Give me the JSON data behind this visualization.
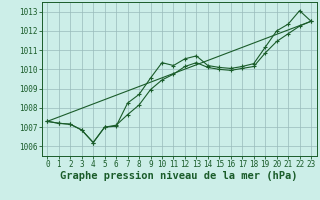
{
  "title": "Graphe pression niveau de la mer (hPa)",
  "bg_color": "#cceee8",
  "grid_color": "#99bbbb",
  "line_color": "#1a5c2a",
  "ylim": [
    1005.5,
    1013.5
  ],
  "xlim": [
    -0.5,
    23.5
  ],
  "yticks": [
    1006,
    1007,
    1008,
    1009,
    1010,
    1011,
    1012,
    1013
  ],
  "xticks": [
    0,
    1,
    2,
    3,
    4,
    5,
    6,
    7,
    8,
    9,
    10,
    11,
    12,
    13,
    14,
    15,
    16,
    17,
    18,
    19,
    20,
    21,
    22,
    23
  ],
  "line1_x": [
    0,
    1,
    2,
    3,
    4,
    5,
    6,
    7,
    8,
    9,
    10,
    11,
    12,
    13,
    14,
    15,
    16,
    17,
    18,
    19,
    20,
    21,
    22,
    23
  ],
  "line1_y": [
    1007.3,
    1007.2,
    1007.15,
    1006.85,
    1006.2,
    1007.0,
    1007.05,
    1008.25,
    1008.7,
    1009.55,
    1010.35,
    1010.2,
    1010.55,
    1010.7,
    1010.2,
    1010.1,
    1010.05,
    1010.15,
    1010.3,
    1011.15,
    1012.0,
    1012.35,
    1013.05,
    1012.5
  ],
  "line2_x": [
    0,
    1,
    2,
    3,
    4,
    5,
    6,
    7,
    8,
    9,
    10,
    11,
    12,
    13,
    14,
    15,
    16,
    17,
    18,
    19,
    20,
    21,
    22,
    23
  ],
  "line2_y": [
    1007.3,
    1007.2,
    1007.15,
    1006.85,
    1006.2,
    1007.0,
    1007.1,
    1007.65,
    1008.15,
    1008.95,
    1009.45,
    1009.75,
    1010.15,
    1010.35,
    1010.1,
    1010.0,
    1009.95,
    1010.05,
    1010.15,
    1010.85,
    1011.45,
    1011.85,
    1012.25,
    1012.5
  ],
  "line3_x": [
    0,
    23
  ],
  "line3_y": [
    1007.3,
    1012.5
  ],
  "marker_size": 3.5,
  "linewidth": 0.8,
  "title_fontsize": 7.5,
  "tick_fontsize": 5.5
}
